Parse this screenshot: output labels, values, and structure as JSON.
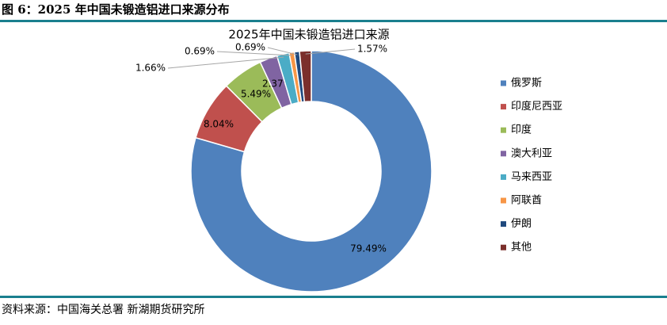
{
  "header": {
    "title": "图 6：2025 年中国未锻造铝进口来源分布"
  },
  "chart_data": {
    "type": "donut",
    "title": "2025年中国未锻造铝进口来源",
    "categories": [
      "俄罗斯",
      "印度尼西亚",
      "印度",
      "澳大利亚",
      "马来西亚",
      "阿联酋",
      "伊朗",
      "其他"
    ],
    "values": [
      79.49,
      8.04,
      5.49,
      2.37,
      1.66,
      0.69,
      0.69,
      1.57
    ],
    "value_labels": [
      "79.49%",
      "8.04%",
      "5.49%",
      "2.37%",
      "1.66%",
      "0.69%",
      "0.69%",
      "1.57%"
    ],
    "colors": [
      "#4f81bd",
      "#c0504d",
      "#9bbb59",
      "#8064a2",
      "#4bacc6",
      "#f79646",
      "#1f497d",
      "#7b2f2c"
    ],
    "legend": "right"
  },
  "footer": {
    "source": "资料来源：中国海关总署 新湖期货研究所"
  }
}
